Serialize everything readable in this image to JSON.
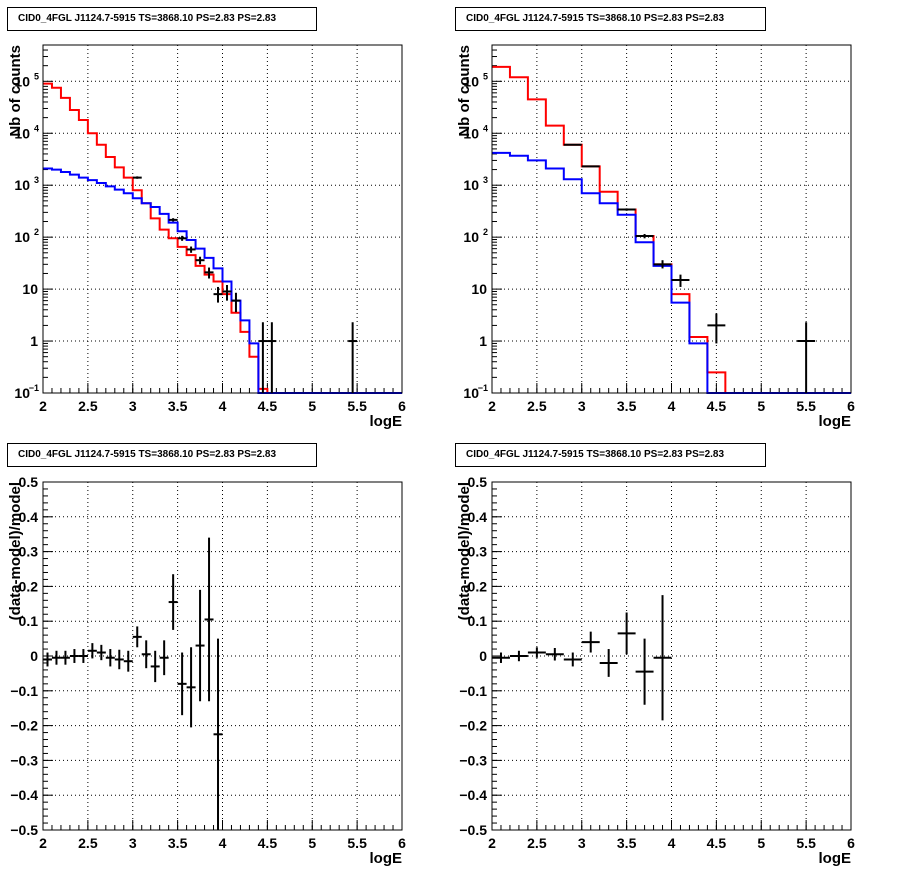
{
  "chart_data": [
    {
      "type": "histogram",
      "title": "CID0_4FGL J1124.7-5915 TS=3868.10 PS=2.83 PS=2.83",
      "xlabel": "logE",
      "ylabel": "Nb of counts",
      "xlim": [
        2,
        6
      ],
      "ylim": [
        0.1,
        500000
      ],
      "yscale": "log",
      "grid": true,
      "bin_edges": [
        2.0,
        2.1,
        2.2,
        2.3,
        2.4,
        2.5,
        2.6,
        2.7,
        2.8,
        2.9,
        3.0,
        3.1,
        3.2,
        3.3,
        3.4,
        3.5,
        3.6,
        3.7,
        3.8,
        3.9,
        4.0,
        4.1,
        4.2,
        4.3,
        4.4,
        4.5,
        4.6,
        4.7,
        4.8,
        4.9,
        5.0,
        5.1,
        5.2,
        5.3,
        5.4,
        5.5,
        5.6,
        5.7,
        5.8,
        5.9,
        6.0
      ],
      "series": [
        {
          "color": "#ff0000",
          "values": [
            90000,
            75000,
            48000,
            28000,
            18000,
            10000,
            6000,
            3500,
            2200,
            1400,
            800,
            450,
            230,
            140,
            95,
            65,
            45,
            28,
            19,
            14,
            8,
            3.5,
            1.5,
            0.5,
            0.12,
            0.1,
            0.1,
            0.1,
            0.1,
            0.1,
            0.1,
            0.1,
            0.1,
            0.1,
            0.1,
            0.1,
            0.1,
            0.1,
            0.1,
            0.1
          ]
        },
        {
          "color": "#0000ff",
          "values": [
            2100,
            2000,
            1800,
            1600,
            1400,
            1250,
            1100,
            950,
            820,
            700,
            560,
            450,
            380,
            280,
            190,
            130,
            88,
            60,
            40,
            25,
            14,
            6,
            2.5,
            0.9,
            0.1,
            0.1,
            0.1,
            0.1,
            0.1,
            0.1,
            0.1,
            0.1,
            0.1,
            0.1,
            0.1,
            0.1,
            0.1,
            0.1,
            0.1,
            0.1
          ]
        }
      ],
      "points": [
        {
          "x": 3.05,
          "y": 1400,
          "ylo": 1330,
          "yhi": 1480
        },
        {
          "x": 3.45,
          "y": 215,
          "ylo": 200,
          "yhi": 232
        },
        {
          "x": 3.55,
          "y": 95,
          "ylo": 85,
          "yhi": 106
        },
        {
          "x": 3.65,
          "y": 58,
          "ylo": 50,
          "yhi": 66
        },
        {
          "x": 3.75,
          "y": 36,
          "ylo": 30,
          "yhi": 42
        },
        {
          "x": 3.85,
          "y": 21,
          "ylo": 16,
          "yhi": 26
        },
        {
          "x": 3.95,
          "y": 8,
          "ylo": 5.5,
          "yhi": 11
        },
        {
          "x": 4.05,
          "y": 9,
          "ylo": 6,
          "yhi": 12
        },
        {
          "x": 4.15,
          "y": 6,
          "ylo": 3.6,
          "yhi": 8.5
        },
        {
          "x": 4.45,
          "y": 1,
          "ylo": 0.1,
          "yhi": 2.3
        },
        {
          "x": 4.55,
          "y": 1,
          "ylo": 0.1,
          "yhi": 2.3
        },
        {
          "x": 5.45,
          "y": 1,
          "ylo": 0.1,
          "yhi": 2.3
        }
      ]
    },
    {
      "type": "histogram",
      "title": "CID0_4FGL J1124.7-5915 TS=3868.10 PS=2.83 PS=2.83",
      "xlabel": "logE",
      "ylabel": "Nb of counts",
      "xlim": [
        2,
        6
      ],
      "ylim": [
        0.1,
        500000
      ],
      "yscale": "log",
      "grid": true,
      "bin_edges": [
        2.0,
        2.2,
        2.4,
        2.6,
        2.8,
        3.0,
        3.2,
        3.4,
        3.6,
        3.8,
        4.0,
        4.2,
        4.4,
        4.6,
        4.8,
        5.0,
        5.2,
        5.4,
        5.6,
        5.8,
        6.0
      ],
      "series": [
        {
          "color": "#ff0000",
          "values": [
            190000,
            120000,
            45000,
            14000,
            6000,
            2300,
            750,
            340,
            105,
            30,
            8,
            1.2,
            0.25,
            0.1,
            0.1,
            0.1,
            0.1,
            0.1,
            0.1,
            0.1
          ]
        },
        {
          "color": "#0000ff",
          "values": [
            4200,
            3700,
            3000,
            2100,
            1300,
            700,
            450,
            270,
            80,
            28,
            5.5,
            0.9,
            0.1,
            0.1,
            0.1,
            0.1,
            0.1,
            0.1,
            0.1,
            0.1
          ]
        }
      ],
      "points": [
        {
          "x": 2.9,
          "y": 6000,
          "ylo": 5900,
          "yhi": 6100
        },
        {
          "x": 3.1,
          "y": 2300,
          "ylo": 2250,
          "yhi": 2350
        },
        {
          "x": 3.5,
          "y": 340,
          "ylo": 322,
          "yhi": 358
        },
        {
          "x": 3.7,
          "y": 105,
          "ylo": 95,
          "yhi": 115
        },
        {
          "x": 3.9,
          "y": 30,
          "ylo": 25,
          "yhi": 36
        },
        {
          "x": 4.1,
          "y": 15,
          "ylo": 11,
          "yhi": 19
        },
        {
          "x": 4.5,
          "y": 2,
          "ylo": 0.9,
          "yhi": 3.4
        },
        {
          "x": 5.5,
          "y": 1,
          "ylo": 0.1,
          "yhi": 2.3
        }
      ]
    },
    {
      "type": "scatter",
      "title": "CID0_4FGL J1124.7-5915 TS=3868.10 PS=2.83 PS=2.83",
      "xlabel": "logE",
      "ylabel": "(data-model)/model",
      "xlim": [
        2,
        6
      ],
      "ylim": [
        -0.5,
        0.5
      ],
      "grid": true,
      "points": [
        {
          "x": 2.05,
          "y": -0.01,
          "err": 0.02
        },
        {
          "x": 2.15,
          "y": -0.005,
          "err": 0.02
        },
        {
          "x": 2.25,
          "y": -0.005,
          "err": 0.02
        },
        {
          "x": 2.35,
          "y": 0.0,
          "err": 0.02
        },
        {
          "x": 2.45,
          "y": 0.0,
          "err": 0.02
        },
        {
          "x": 2.55,
          "y": 0.015,
          "err": 0.022
        },
        {
          "x": 2.65,
          "y": 0.01,
          "err": 0.022
        },
        {
          "x": 2.75,
          "y": -0.005,
          "err": 0.025
        },
        {
          "x": 2.85,
          "y": -0.01,
          "err": 0.028
        },
        {
          "x": 2.95,
          "y": -0.015,
          "err": 0.03
        },
        {
          "x": 3.05,
          "y": 0.055,
          "err": 0.03
        },
        {
          "x": 3.15,
          "y": 0.005,
          "err": 0.04
        },
        {
          "x": 3.25,
          "y": -0.03,
          "err": 0.045
        },
        {
          "x": 3.35,
          "y": -0.005,
          "err": 0.05
        },
        {
          "x": 3.45,
          "y": 0.155,
          "err": 0.08
        },
        {
          "x": 3.55,
          "y": -0.08,
          "err": 0.09
        },
        {
          "x": 3.65,
          "y": -0.09,
          "err": 0.115
        },
        {
          "x": 3.75,
          "y": 0.03,
          "err": 0.16
        },
        {
          "x": 3.85,
          "y": 0.105,
          "err": 0.235
        },
        {
          "x": 3.95,
          "y": -0.225,
          "err": 0.275
        }
      ]
    },
    {
      "type": "scatter",
      "title": "CID0_4FGL J1124.7-5915 TS=3868.10 PS=2.83 PS=2.83",
      "xlabel": "logE",
      "ylabel": "(data-model)/model",
      "xlim": [
        2,
        6
      ],
      "ylim": [
        -0.5,
        0.5
      ],
      "grid": true,
      "points": [
        {
          "x": 2.1,
          "y": -0.005,
          "err": 0.015,
          "xw": 0.1
        },
        {
          "x": 2.3,
          "y": 0.0,
          "err": 0.015,
          "xw": 0.1
        },
        {
          "x": 2.5,
          "y": 0.01,
          "err": 0.015,
          "xw": 0.1
        },
        {
          "x": 2.7,
          "y": 0.005,
          "err": 0.018,
          "xw": 0.1
        },
        {
          "x": 2.9,
          "y": -0.01,
          "err": 0.02,
          "xw": 0.1
        },
        {
          "x": 3.1,
          "y": 0.04,
          "err": 0.03,
          "xw": 0.1
        },
        {
          "x": 3.3,
          "y": -0.02,
          "err": 0.04,
          "xw": 0.1
        },
        {
          "x": 3.5,
          "y": 0.065,
          "err": 0.06,
          "xw": 0.1
        },
        {
          "x": 3.7,
          "y": -0.045,
          "err": 0.095,
          "xw": 0.1
        },
        {
          "x": 3.9,
          "y": -0.005,
          "err": 0.18,
          "xw": 0.1
        }
      ]
    }
  ]
}
